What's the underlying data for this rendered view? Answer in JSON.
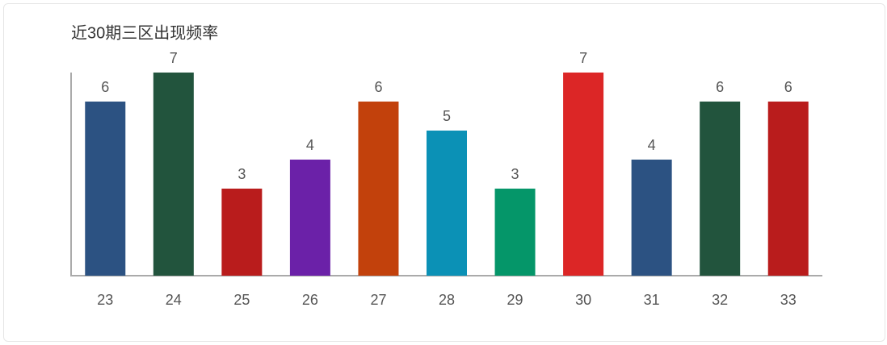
{
  "chart_data": {
    "type": "bar",
    "title": "近30期三区出现频率",
    "categories": [
      "23",
      "24",
      "25",
      "26",
      "27",
      "28",
      "29",
      "30",
      "31",
      "32",
      "33"
    ],
    "values": [
      6,
      7,
      3,
      4,
      6,
      5,
      3,
      7,
      4,
      6,
      6
    ],
    "colors": [
      "#2c5282",
      "#22543d",
      "#b91c1c",
      "#6b21a8",
      "#c2410c",
      "#0b91b6",
      "#059669",
      "#dc2626",
      "#2c5282",
      "#22543d",
      "#b91c1c"
    ],
    "ylim": [
      0,
      7
    ]
  }
}
